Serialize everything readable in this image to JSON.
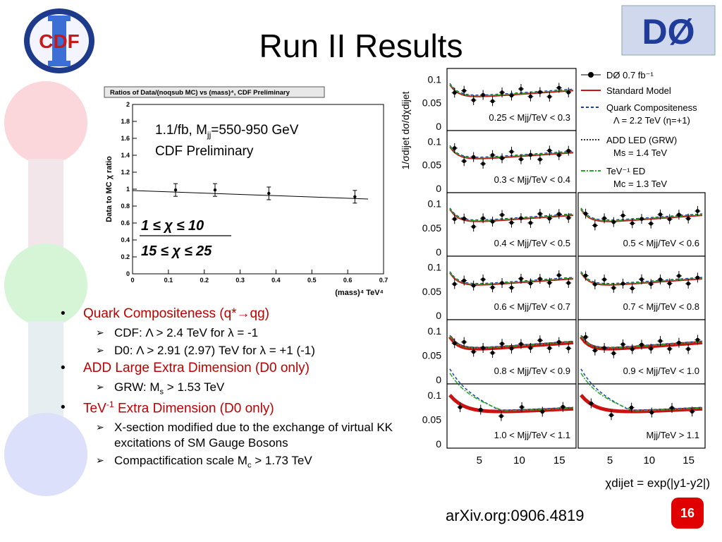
{
  "title": "Run II Results",
  "logos": {
    "left_text": "CDF",
    "right_text": "DØ"
  },
  "cdf_plot": {
    "header": "Ratios of Data/(noqsub MC) vs (mass)⁴, CDF Preliminary",
    "ylabel": "Data to MC χ ratio",
    "xlabel": "(mass)⁴ TeV⁴",
    "annot1": "1.1/fb, M",
    "annot1_sub": "jj",
    "annot1_rest": "=550-950 GeV",
    "annot2": "CDF Preliminary",
    "frac_num": "1 ≤ χ ≤ 10",
    "frac_den": "15 ≤ χ ≤ 25",
    "yticks": [
      "0",
      "0.2",
      "0.4",
      "0.6",
      "0.8",
      "1",
      "1.2",
      "1.4",
      "1.6",
      "1.8",
      "2"
    ],
    "xticks": [
      "0",
      "0.1",
      "0.2",
      "0.3",
      "0.4",
      "0.5",
      "0.6",
      "0.7"
    ]
  },
  "chart_data": {
    "type": "scatter",
    "x": [
      0.12,
      0.23,
      0.38,
      0.62
    ],
    "y": [
      0.99,
      0.99,
      0.95,
      0.91
    ],
    "xlim": [
      0,
      0.7
    ],
    "ylim": [
      0,
      2
    ]
  },
  "d0_plot": {
    "ylabel": "1/σdijet dσ/dχdijet",
    "xlabel": "χdijet = exp(|y1-y2|)",
    "legend": [
      "DØ  0.7 fb⁻¹",
      "Standard Model",
      "Quark Compositeness",
      "Λ = 2.2 TeV  (η=+1)",
      "ADD LED  (GRW)",
      "Ms = 1.4 TeV",
      "TeV⁻¹ ED",
      "Mc = 1.3 TeV"
    ],
    "panels": [
      "0.25 < Mjj/TeV < 0.3",
      "0.3 < Mjj/TeV < 0.4",
      "0.4 < Mjj/TeV < 0.5",
      "0.5 < Mjj/TeV < 0.6",
      "0.6 < Mjj/TeV < 0.7",
      "0.7 < Mjj/TeV < 0.8",
      "0.8 < Mjj/TeV < 0.9",
      "0.9 < Mjj/TeV < 1.0",
      "1.0 < Mjj/TeV < 1.1",
      "Mjj/TeV > 1.1"
    ],
    "yticks": [
      "0.1",
      "0.05",
      "0"
    ],
    "xticks": [
      "5",
      "10",
      "15"
    ]
  },
  "bullets": {
    "b1": "Quark Compositeness (q*→qg)",
    "b1a": "CDF: Λ > 2.4 TeV for λ = -1",
    "b1b": "D0: Λ > 2.91 (2.97) TeV for λ = +1 (-1)",
    "b2": "ADD Large Extra Dimension (D0 only)",
    "b2a_pre": "GRW: M",
    "b2a_sub": "s",
    "b2a_post": " > 1.53 TeV",
    "b3_pre": "TeV",
    "b3_sup": "-1",
    "b3_post": " Extra Dimension (D0 only)",
    "b3a": "X-section modified due to the exchange of virtual KK excitations of SM Gauge Bosons",
    "b3b_pre": "Compactification scale M",
    "b3b_sub": "c",
    "b3b_post": " > 1.73 TeV"
  },
  "footer": {
    "arxiv": "arXiv.org:0906.4819",
    "page": "16"
  }
}
